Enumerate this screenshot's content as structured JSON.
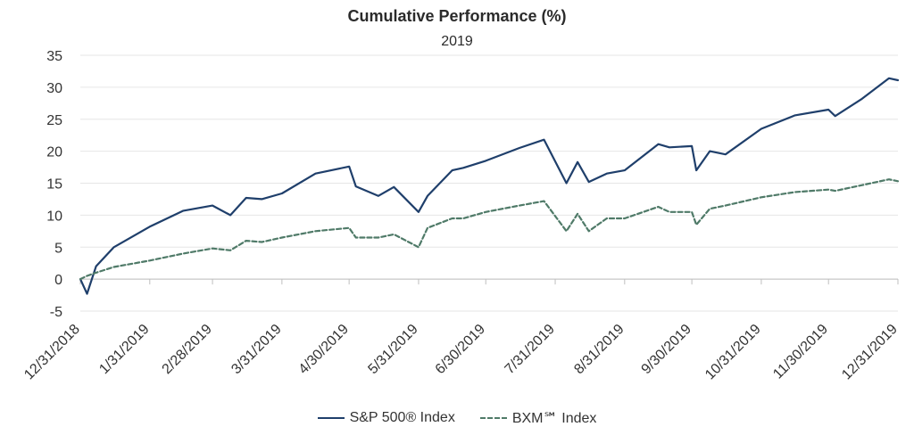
{
  "chart_data": {
    "type": "line",
    "title": "Cumulative Performance (%)",
    "subtitle": "2019",
    "xlabel": "",
    "ylabel": "",
    "ylim": [
      -5,
      35
    ],
    "y_ticks": [
      "35",
      "30",
      "25",
      "20",
      "15",
      "10",
      "5",
      "0",
      "-5"
    ],
    "x_tick_labels": [
      "12/31/2018",
      "1/31/2019",
      "2/28/2019",
      "3/31/2019",
      "4/30/2019",
      "5/31/2019",
      "6/30/2019",
      "7/31/2019",
      "8/31/2019",
      "9/30/2019",
      "10/31/2019",
      "11/30/2019",
      "12/31/2019"
    ],
    "x": [
      "12/31/2018",
      "1/3/2019",
      "1/7/2019",
      "1/15/2019",
      "1/31/2019",
      "2/15/2019",
      "2/28/2019",
      "3/8/2019",
      "3/15/2019",
      "3/22/2019",
      "3/31/2019",
      "4/15/2019",
      "4/30/2019",
      "5/3/2019",
      "5/13/2019",
      "5/20/2019",
      "5/31/2019",
      "6/4/2019",
      "6/15/2019",
      "6/20/2019",
      "6/30/2019",
      "7/15/2019",
      "7/26/2019",
      "8/5/2019",
      "8/10/2019",
      "8/15/2019",
      "8/23/2019",
      "8/31/2019",
      "9/15/2019",
      "9/20/2019",
      "9/30/2019",
      "10/2/2019",
      "10/8/2019",
      "10/15/2019",
      "10/31/2019",
      "11/15/2019",
      "11/30/2019",
      "12/3/2019",
      "12/15/2019",
      "12/27/2019",
      "12/31/2019"
    ],
    "grid": true,
    "legend_position": "bottom",
    "series": [
      {
        "name": "S&P 500® Index",
        "color": "#1f3f6b",
        "style": "solid",
        "values": [
          0.0,
          -2.3,
          2.0,
          5.0,
          8.2,
          10.7,
          11.5,
          10.0,
          12.7,
          12.5,
          13.4,
          16.5,
          17.6,
          14.5,
          13.0,
          14.4,
          10.5,
          13.0,
          17.0,
          17.4,
          18.5,
          20.5,
          21.8,
          15.0,
          18.3,
          15.2,
          16.5,
          17.0,
          21.1,
          20.6,
          20.8,
          17.0,
          20.0,
          19.5,
          23.5,
          25.6,
          26.5,
          25.5,
          28.2,
          31.4,
          31.1
        ]
      },
      {
        "name": "BXM℠ Index",
        "color": "#4f7a68",
        "style": "dashed",
        "values": [
          0.0,
          0.5,
          1.0,
          1.9,
          2.9,
          4.0,
          4.8,
          4.5,
          6.0,
          5.8,
          6.5,
          7.5,
          8.0,
          6.5,
          6.5,
          7.0,
          5.0,
          8.0,
          9.5,
          9.5,
          10.5,
          11.5,
          12.2,
          7.5,
          10.2,
          7.5,
          9.5,
          9.5,
          11.3,
          10.5,
          10.5,
          8.5,
          11.0,
          11.5,
          12.8,
          13.6,
          14.0,
          13.8,
          14.7,
          15.6,
          15.3
        ]
      }
    ]
  }
}
